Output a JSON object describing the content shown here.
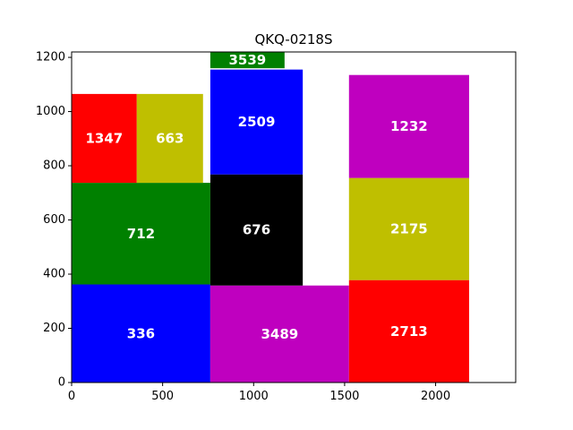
{
  "chart_data": {
    "type": "treemap",
    "title": "QKQ-0218S",
    "xlabel": "",
    "ylabel": "",
    "xlim": [
      0,
      2440
    ],
    "ylim": [
      0,
      1220
    ],
    "xticks": [
      0,
      500,
      1000,
      1500,
      2000
    ],
    "yticks": [
      0,
      200,
      400,
      600,
      800,
      1000,
      1200
    ],
    "grid": false,
    "rectangles": [
      {
        "label": "336",
        "value": 336,
        "x0": 0,
        "x1": 762,
        "y0": 0,
        "y1": 362,
        "color": "#0000ff"
      },
      {
        "label": "712",
        "value": 712,
        "x0": 0,
        "x1": 762,
        "y0": 362,
        "y1": 737,
        "color": "#008000"
      },
      {
        "label": "1347",
        "value": 1347,
        "x0": 0,
        "x1": 358,
        "y0": 737,
        "y1": 1065,
        "color": "#ff0000"
      },
      {
        "label": "663",
        "value": 663,
        "x0": 358,
        "x1": 722,
        "y0": 737,
        "y1": 1065,
        "color": "#bfbf00"
      },
      {
        "label": "3489",
        "value": 3489,
        "x0": 762,
        "x1": 1524,
        "y0": 0,
        "y1": 358,
        "color": "#bf00bf"
      },
      {
        "label": "676",
        "value": 676,
        "x0": 762,
        "x1": 1270,
        "y0": 358,
        "y1": 768,
        "color": "#000000"
      },
      {
        "label": "2509",
        "value": 2509,
        "x0": 762,
        "x1": 1270,
        "y0": 768,
        "y1": 1155,
        "color": "#0000ff"
      },
      {
        "label": "3539",
        "value": 3539,
        "x0": 762,
        "x1": 1170,
        "y0": 1160,
        "y1": 1220,
        "color": "#008000"
      },
      {
        "label": "2713",
        "value": 2713,
        "x0": 1524,
        "x1": 2184,
        "y0": 0,
        "y1": 378,
        "color": "#ff0000"
      },
      {
        "label": "2175",
        "value": 2175,
        "x0": 1524,
        "x1": 2184,
        "y0": 378,
        "y1": 755,
        "color": "#bfbf00"
      },
      {
        "label": "1232",
        "value": 1232,
        "x0": 1524,
        "x1": 2184,
        "y0": 755,
        "y1": 1135,
        "color": "#bf00bf"
      }
    ]
  }
}
